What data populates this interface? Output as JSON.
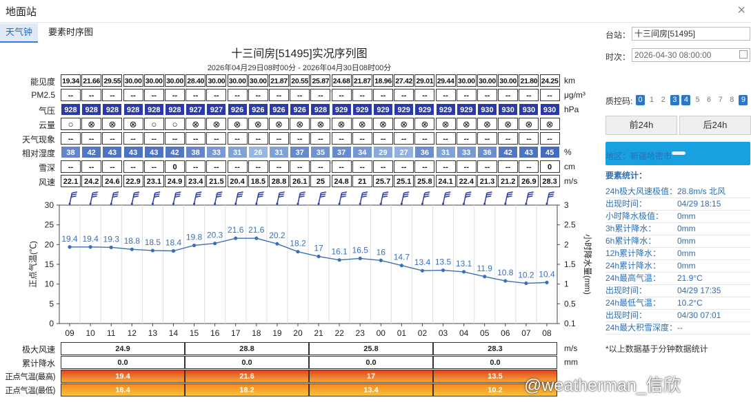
{
  "window": {
    "title": "地面站",
    "close_icon": "×"
  },
  "tabs": [
    {
      "label": "天气钟",
      "active": true
    },
    {
      "label": "要素时序图",
      "active": false
    }
  ],
  "chart_title": "十三间房[51495]实况序列图",
  "chart_subtitle": "2026年04月29日08时00分 - 2026年04月30日08时00分",
  "hours": [
    "09",
    "10",
    "11",
    "12",
    "13",
    "14",
    "15",
    "16",
    "17",
    "18",
    "19",
    "20",
    "21",
    "22",
    "23",
    "00",
    "01",
    "02",
    "03",
    "04",
    "05",
    "06",
    "07",
    "08"
  ],
  "rows": {
    "visibility": {
      "label": "能见度",
      "unit": "km",
      "values": [
        "19.34",
        "21.66",
        "29.55",
        "30.00",
        "30.00",
        "30.00",
        "28.40",
        "30.00",
        "30.00",
        "30.00",
        "21.87",
        "20.55",
        "25.87",
        "24.68",
        "21.87",
        "18.96",
        "27.42",
        "29.01",
        "29.44",
        "30.00",
        "30.00",
        "30.00",
        "21.80",
        "24.25"
      ]
    },
    "pm25": {
      "label": "PM2.5",
      "unit": "μg/m³",
      "values": [
        "--",
        "--",
        "--",
        "--",
        "--",
        "--",
        "--",
        "--",
        "--",
        "--",
        "--",
        "--",
        "--",
        "--",
        "--",
        "--",
        "--",
        "--",
        "--",
        "--",
        "--",
        "--",
        "--",
        "--"
      ]
    },
    "pressure": {
      "label": "气压",
      "unit": "hPa",
      "values": [
        "928",
        "928",
        "928",
        "928",
        "928",
        "928",
        "927",
        "927",
        "926",
        "926",
        "926",
        "926",
        "928",
        "929",
        "929",
        "929",
        "929",
        "929",
        "929",
        "929",
        "930",
        "930",
        "930",
        "930"
      ]
    },
    "cloud": {
      "label": "云量",
      "values": [
        "○",
        "⊗",
        "⊗",
        "⊗",
        "○",
        "○",
        "⊗",
        "⊗",
        "⊗",
        "⊗",
        "⊗",
        "⊗",
        "⊗",
        "⊗",
        "⊗",
        "⊗",
        "⊗",
        "⊗",
        "⊗",
        "⊗",
        "⊗",
        "⊗",
        "⊗",
        "⊗"
      ]
    },
    "weather": {
      "label": "天气现象",
      "values": [
        "--",
        "--",
        "--",
        "--",
        "--",
        "--",
        "--",
        "--",
        "--",
        "--",
        "--",
        "--",
        "--",
        "--",
        "--",
        "--",
        "--",
        "--",
        "--",
        "--",
        "--",
        "--",
        "--",
        "--"
      ]
    },
    "humidity": {
      "label": "相对湿度",
      "unit": "%",
      "values": [
        "38",
        "42",
        "43",
        "43",
        "43",
        "42",
        "38",
        "33",
        "31",
        "26",
        "31",
        "37",
        "35",
        "37",
        "34",
        "29",
        "27",
        "36",
        "31",
        "33",
        "36",
        "42",
        "43",
        "45"
      ]
    },
    "snow": {
      "label": "雪深",
      "unit": "cm",
      "values": [
        "--",
        "--",
        "--",
        "--",
        "--",
        "0",
        "--",
        "--",
        "--",
        "--",
        "--",
        "--",
        "--",
        "--",
        "--",
        "--",
        "--",
        "--",
        "--",
        "--",
        "--",
        "--",
        "--",
        "0"
      ]
    },
    "wind": {
      "label": "风速",
      "unit": "m/s",
      "values": [
        "22.1",
        "24.2",
        "24.6",
        "22.9",
        "23.1",
        "24.9",
        "23.4",
        "21.5",
        "20.4",
        "18.5",
        "28.8",
        "26.1",
        "25",
        "24.8",
        "21",
        "25.7",
        "25.1",
        "25.8",
        "24.1",
        "22.4",
        "21.3",
        "21.2",
        "26.9",
        "28.3"
      ]
    }
  },
  "chart_data": {
    "type": "line",
    "x": [
      "09",
      "10",
      "11",
      "12",
      "13",
      "14",
      "15",
      "16",
      "17",
      "18",
      "19",
      "20",
      "21",
      "22",
      "23",
      "00",
      "01",
      "02",
      "03",
      "04",
      "05",
      "06",
      "07",
      "08"
    ],
    "series": [
      {
        "values": [
          19.4,
          19.4,
          19.3,
          18.8,
          18.5,
          18.4,
          19.8,
          20.3,
          21.6,
          21.6,
          20.2,
          18.2,
          17,
          16.1,
          16.5,
          16,
          14.7,
          13.4,
          13.5,
          13.1,
          11.9,
          10.8,
          10.2,
          10.4
        ]
      }
    ],
    "data_labels": [
      "19.4",
      "19.4",
      "19.3",
      "18.8",
      "18.5",
      "18.4",
      "19.8",
      "20.3",
      "21.6",
      "21.6",
      "20.2",
      "18.2",
      "17",
      "16.1",
      "16.5",
      "16",
      "14.7",
      "13.4",
      "13.5",
      "13.1",
      "11.9",
      "10.8",
      "10.2",
      "10.4"
    ],
    "ylabel": "正点气温(℃)",
    "ylim": [
      0,
      30
    ],
    "yticks": [
      "0",
      "5",
      "10",
      "15",
      "20",
      "25",
      "30"
    ],
    "y2label": "小时降水量(mm)",
    "y2ticks": [
      "0.1",
      "0.5",
      "1",
      "1.5",
      "2",
      "2.5",
      "3"
    ],
    "grid": true,
    "line_color": "#3a6fb8"
  },
  "bottom": {
    "max_wind": {
      "label": "极大风速",
      "unit": "m/s",
      "values": [
        "24.9",
        "28.8",
        "25.8",
        "28.3"
      ]
    },
    "precip": {
      "label": "累计降水",
      "unit": "mm",
      "values": [
        "0.0",
        "0.0",
        "0.0",
        "0.0"
      ]
    },
    "tmax": {
      "label": "正点气温(最高)",
      "values": [
        "19.4",
        "21.6",
        "17",
        "13.5"
      ]
    },
    "tmin": {
      "label": "正点气温(最低)",
      "values": [
        "18.4",
        "18.2",
        "13.4",
        "10.2"
      ]
    }
  },
  "sidebar": {
    "station_label": "台站：",
    "station_value": "十三间房[51495]",
    "time_label": "时次：",
    "time_value": "2026-04-30 08:00:00",
    "qc_label": "质控码:",
    "qc_codes": [
      {
        "v": "0",
        "on": true
      },
      {
        "v": "1",
        "on": false
      },
      {
        "v": "2",
        "on": false
      },
      {
        "v": "3",
        "on": true
      },
      {
        "v": "4",
        "on": true
      },
      {
        "v": "5",
        "on": false
      },
      {
        "v": "6",
        "on": false
      },
      {
        "v": "7",
        "on": false
      },
      {
        "v": "8",
        "on": false
      },
      {
        "v": "9",
        "on": true
      }
    ],
    "prev_btn": "前24h",
    "next_btn": "后24h",
    "region": "地区：新疆哈密市",
    "stats_title": "要素统计：",
    "stats": [
      {
        "k": "24h极大风速极值：",
        "v": "28.8m/s 北风"
      },
      {
        "k": "出现时间：",
        "v": "04/29 18:15"
      },
      {
        "k": "小时降水极值：",
        "v": "0mm"
      },
      {
        "k": "3h累计降水：",
        "v": "0mm"
      },
      {
        "k": "6h累计降水：",
        "v": "0mm"
      },
      {
        "k": "12h累计降水：",
        "v": "0mm"
      },
      {
        "k": "24h累计降水：",
        "v": "0mm"
      },
      {
        "k": "24h最高气温：",
        "v": "21.9°C"
      },
      {
        "k": "出现时间：",
        "v": "04/29 17:35"
      },
      {
        "k": "24h最低气温：",
        "v": "10.2°C"
      },
      {
        "k": "出现时间：",
        "v": "04/30 07:01"
      },
      {
        "k": "24h最大积雪深度：",
        "v": "--"
      }
    ],
    "note": "*以上数据基于分钟数据统计"
  },
  "watermark": "@weatherman_信欣",
  "colors": {
    "pressure": "#2a3aa8",
    "humidity_dark": "#3d64b8",
    "humidity_light": "#9ab8e6",
    "tmax_grad": [
      "#e0461f",
      "#f7a63a"
    ],
    "tmin_grad": [
      "#f48a1f",
      "#fbc23a"
    ],
    "accent": "#2a76c7"
  }
}
